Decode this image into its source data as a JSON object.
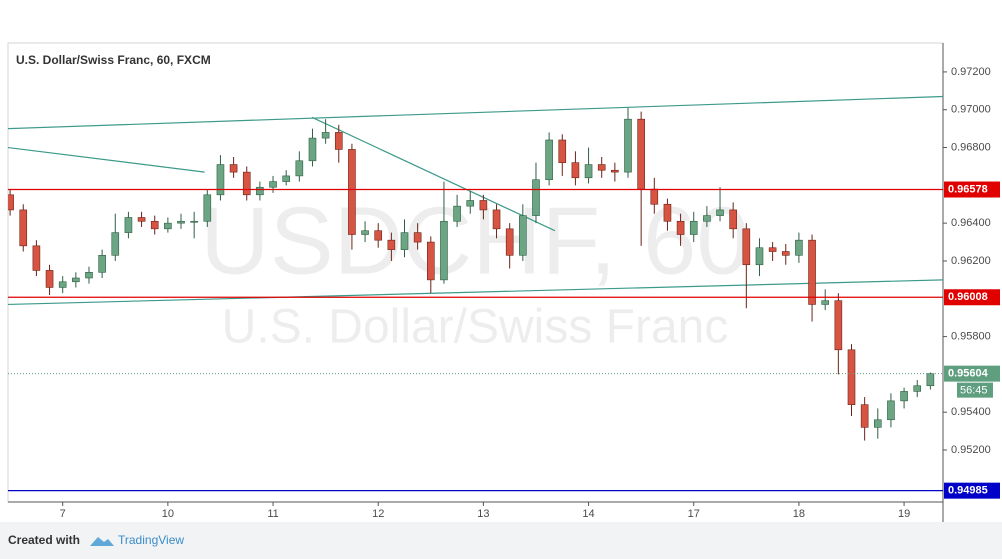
{
  "chart_data": {
    "type": "candlestick",
    "title": "U.S. Dollar/Swiss Franc, 60, FXCM",
    "watermark": "USDCHF, 60",
    "watermark_subtitle": "U.S. Dollar/Swiss Franc",
    "up_color": "#6ba583",
    "down_color": "#d75442",
    "xlim": [
      -0.52,
      8.37
    ],
    "xticks": [
      {
        "value": 0,
        "label": "7"
      },
      {
        "value": 1,
        "label": "10"
      },
      {
        "value": 2,
        "label": "11"
      },
      {
        "value": 3,
        "label": "12"
      },
      {
        "value": 4,
        "label": "13"
      },
      {
        "value": 5,
        "label": "14"
      },
      {
        "value": 6,
        "label": "17"
      },
      {
        "value": 7,
        "label": "18"
      },
      {
        "value": 8,
        "label": "19"
      }
    ],
    "ylim": [
      0.94925,
      0.97353
    ],
    "yticks": [
      {
        "value": 0.972,
        "label": "0.97200"
      },
      {
        "value": 0.97,
        "label": "0.97000"
      },
      {
        "value": 0.968,
        "label": "0.96800"
      },
      {
        "value": 0.964,
        "label": "0.96400"
      },
      {
        "value": 0.962,
        "label": "0.96200"
      },
      {
        "value": 0.958,
        "label": "0.95800"
      },
      {
        "value": 0.954,
        "label": "0.95400"
      },
      {
        "value": 0.952,
        "label": "0.95200"
      }
    ],
    "grid": false,
    "x": [
      -0.5,
      -0.375,
      -0.25,
      -0.125,
      0,
      0.125,
      0.25,
      0.375,
      0.5,
      0.625,
      0.75,
      0.875,
      1,
      1.125,
      1.25,
      1.375,
      1.5,
      1.625,
      1.75,
      1.875,
      2,
      2.125,
      2.25,
      2.375,
      2.5,
      2.625,
      2.75,
      2.875,
      3,
      3.125,
      3.25,
      3.375,
      3.5,
      3.625,
      3.75,
      3.875,
      4,
      4.125,
      4.25,
      4.375,
      4.5,
      4.625,
      4.75,
      4.875,
      5,
      5.125,
      5.25,
      5.375,
      5.5,
      5.625,
      5.75,
      5.875,
      6,
      6.125,
      6.25,
      6.375,
      6.5,
      6.625,
      6.75,
      6.875,
      7,
      7.125,
      7.25,
      7.375,
      7.5,
      7.625,
      7.75,
      7.875,
      8,
      8.125,
      8.25
    ],
    "open": [
      0.9655,
      0.9647,
      0.9628,
      0.9615,
      0.9606,
      0.9609,
      0.9611,
      0.9614,
      0.9623,
      0.9635,
      0.9643,
      0.9641,
      0.9637,
      0.964,
      0.9641,
      0.9641,
      0.9655,
      0.9671,
      0.9667,
      0.9655,
      0.9659,
      0.9662,
      0.9665,
      0.9673,
      0.9685,
      0.9688,
      0.9679,
      0.9634,
      0.9636,
      0.9631,
      0.9626,
      0.9635,
      0.963,
      0.961,
      0.9641,
      0.9649,
      0.9652,
      0.9647,
      0.9637,
      0.9623,
      0.9644,
      0.9663,
      0.9684,
      0.9672,
      0.9664,
      0.9671,
      0.9668,
      0.9667,
      0.9695,
      0.9658,
      0.965,
      0.9641,
      0.9634,
      0.9641,
      0.9644,
      0.9647,
      0.9637,
      0.9618,
      0.9627,
      0.9625,
      0.9623,
      0.9631,
      0.9597,
      0.9599,
      0.9573,
      0.9544,
      0.9532,
      0.9536,
      0.9546,
      0.9551,
      0.9554
    ],
    "high": [
      0.9658,
      0.965,
      0.9631,
      0.9618,
      0.9612,
      0.9614,
      0.9617,
      0.9626,
      0.9645,
      0.9646,
      0.9646,
      0.9644,
      0.9643,
      0.9645,
      0.9646,
      0.9658,
      0.9676,
      0.9675,
      0.967,
      0.9662,
      0.9665,
      0.9668,
      0.9678,
      0.969,
      0.9695,
      0.9692,
      0.9682,
      0.9641,
      0.964,
      0.9635,
      0.9642,
      0.964,
      0.9633,
      0.9662,
      0.9655,
      0.9657,
      0.9655,
      0.965,
      0.964,
      0.965,
      0.9672,
      0.9688,
      0.9687,
      0.9678,
      0.968,
      0.9675,
      0.9672,
      0.9701,
      0.9699,
      0.9664,
      0.9653,
      0.9645,
      0.9646,
      0.9649,
      0.9659,
      0.9651,
      0.964,
      0.9632,
      0.963,
      0.9629,
      0.9635,
      0.9634,
      0.9605,
      0.9603,
      0.9576,
      0.9548,
      0.9542,
      0.955,
      0.9553,
      0.9557,
      0.9561
    ],
    "low": [
      0.9644,
      0.9625,
      0.9612,
      0.9602,
      0.9603,
      0.9606,
      0.9608,
      0.9611,
      0.962,
      0.9632,
      0.9638,
      0.9634,
      0.9635,
      0.9637,
      0.9632,
      0.9638,
      0.9652,
      0.9664,
      0.9652,
      0.9652,
      0.9656,
      0.966,
      0.9662,
      0.967,
      0.9682,
      0.9672,
      0.9626,
      0.963,
      0.9627,
      0.962,
      0.9622,
      0.9626,
      0.9603,
      0.9608,
      0.9638,
      0.9645,
      0.9642,
      0.9632,
      0.9616,
      0.962,
      0.964,
      0.966,
      0.9665,
      0.966,
      0.9661,
      0.9664,
      0.9662,
      0.9664,
      0.9628,
      0.9645,
      0.9636,
      0.9628,
      0.963,
      0.9638,
      0.9641,
      0.9632,
      0.9595,
      0.9612,
      0.962,
      0.9618,
      0.9619,
      0.9588,
      0.9594,
      0.956,
      0.9538,
      0.9525,
      0.9526,
      0.9532,
      0.9542,
      0.9548,
      0.9552
    ],
    "close": [
      0.9647,
      0.9628,
      0.9615,
      0.9606,
      0.9609,
      0.9611,
      0.9614,
      0.9623,
      0.9635,
      0.9643,
      0.9641,
      0.9637,
      0.964,
      0.9641,
      0.9641,
      0.9655,
      0.9671,
      0.9667,
      0.9655,
      0.9659,
      0.9662,
      0.9665,
      0.9673,
      0.9685,
      0.9688,
      0.9679,
      0.9634,
      0.9636,
      0.9631,
      0.9626,
      0.9635,
      0.963,
      0.961,
      0.9641,
      0.9649,
      0.9652,
      0.9647,
      0.9637,
      0.9623,
      0.9644,
      0.9663,
      0.9684,
      0.9672,
      0.9664,
      0.9671,
      0.9668,
      0.9667,
      0.9695,
      0.9658,
      0.965,
      0.9641,
      0.9634,
      0.9641,
      0.9644,
      0.9647,
      0.9637,
      0.9618,
      0.9627,
      0.9625,
      0.9623,
      0.9631,
      0.9597,
      0.9599,
      0.9573,
      0.9544,
      0.9532,
      0.9536,
      0.9546,
      0.9551,
      0.9554,
      0.95604
    ],
    "levels": [
      {
        "value": 0.96578,
        "color": "#e00000",
        "dash": false
      },
      {
        "value": 0.96008,
        "color": "#e00000",
        "dash": false
      },
      {
        "value": 0.94985,
        "color": "#0000c8",
        "dash": false
      },
      {
        "value": 0.95604,
        "color": "#5f9f80",
        "dash": true
      }
    ],
    "countdown": "56:45",
    "trend_color": "#3c9a8a",
    "trend_lines": [
      {
        "x": [
          -0.52,
          8.37
        ],
        "y": [
          0.969,
          0.9707
        ]
      },
      {
        "x": [
          -0.52,
          8.37
        ],
        "y": [
          0.9597,
          0.961
        ]
      },
      {
        "x": [
          -0.52,
          1.35
        ],
        "y": [
          0.968,
          0.9667
        ]
      },
      {
        "x": [
          2.37,
          4.68
        ],
        "y": [
          0.9696,
          0.9636
        ]
      }
    ]
  },
  "footer": {
    "created": "Created with",
    "brand": "TradingView"
  }
}
